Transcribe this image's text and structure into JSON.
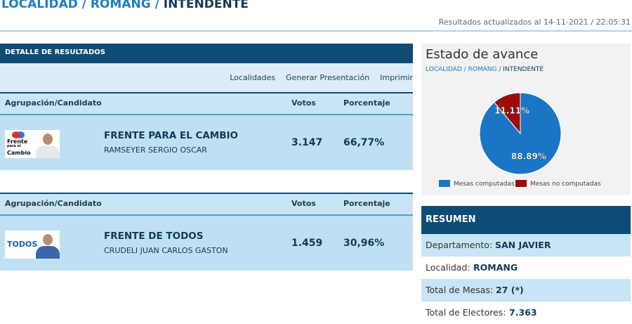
{
  "header": {
    "path": "LOCALIDAD / ROMANG /",
    "current": "INTENDENTE",
    "updated": "Resultados actualizados al 14-11-2021 / 22:05:31"
  },
  "results": {
    "title": "DETALLE DE RESULTADOS",
    "links": [
      "Localidades",
      "Generar Presentación",
      "Imprimir"
    ],
    "blocks": [
      {
        "headers": [
          "Agrupación/Candidato",
          "Votos",
          "Porcentaje"
        ],
        "logo": [
          "Frente",
          "para el",
          "Cambio"
        ],
        "party": "FRENTE PARA EL CAMBIO",
        "candidate": "RAMSEYER SERGIO OSCAR",
        "votes": "3.147",
        "percent": "66,77%"
      },
      {
        "headers": [
          "Agrupación/Candidato",
          "Votos",
          "Porcentaje"
        ],
        "logo": [
          "TODOS"
        ],
        "party": "FRENTE DE TODOS",
        "candidate": "CRUDELI JUAN CARLOS GASTON",
        "votes": "1.459",
        "percent": "30,96%"
      }
    ]
  },
  "progress": {
    "title": "Estado de avance",
    "path": "LOCALIDAD / ROMANG /",
    "current": "INTENDENTE"
  },
  "chart_data": {
    "type": "pie",
    "categories": [
      "Mesas computadas",
      "Mesas no computadas"
    ],
    "values": [
      88.89,
      11.11
    ],
    "value_labels": [
      "88.89%",
      "11.11%"
    ],
    "colors": [
      "#1a76c4",
      "#9b0d0d"
    ]
  },
  "summary": {
    "title": "RESUMEN",
    "rows": [
      {
        "label": "Departamento:",
        "value": "SAN JAVIER"
      },
      {
        "label": "Localidad:",
        "value": "ROMANG"
      },
      {
        "label": "Total de Mesas:",
        "value": "27 (*)"
      },
      {
        "label": "Total de Electores:",
        "value": "7.363"
      }
    ]
  }
}
